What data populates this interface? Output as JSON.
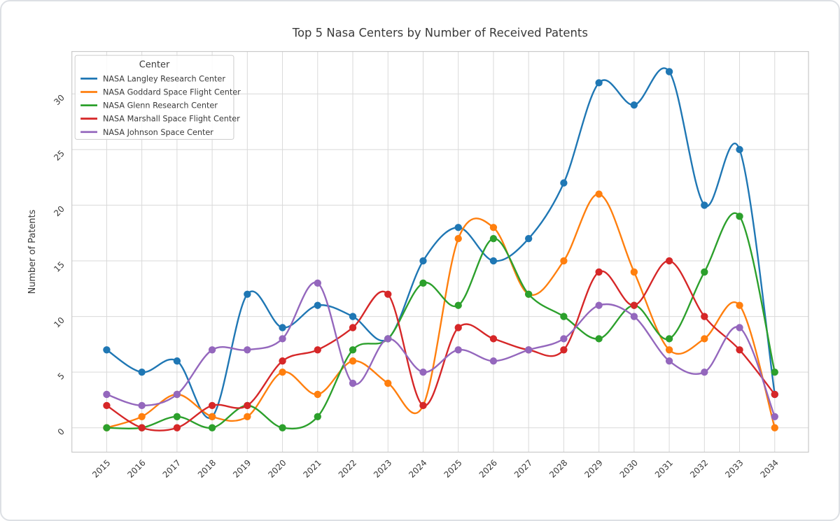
{
  "chart_data": {
    "type": "line",
    "title": "Top 5 Nasa Centers by Number of Received Patents",
    "xlabel": "",
    "ylabel": "Number of Patents",
    "legend_title": "Center",
    "legend_position": "upper left",
    "grid": true,
    "marker": "circle",
    "line_style": "smooth-spline",
    "categories": [
      "2015",
      "2016",
      "2017",
      "2018",
      "2019",
      "2020",
      "2021",
      "2022",
      "2023",
      "2024",
      "2025",
      "2026",
      "2027",
      "2028",
      "2029",
      "2030",
      "2031",
      "2032",
      "2033",
      "2034"
    ],
    "yticks": [
      0,
      5,
      10,
      15,
      20,
      25,
      30
    ],
    "ylim": [
      -2.3,
      33.8
    ],
    "grid_color": "#d9d9d9",
    "spine_color": "#c9c9c9",
    "text_color": "#3a3a3a",
    "series": [
      {
        "name": "NASA Langley Research Center",
        "color": "#1f77b4",
        "values": [
          7,
          5,
          6,
          1,
          12,
          9,
          11,
          10,
          8,
          15,
          18,
          15,
          17,
          22,
          31,
          29,
          32,
          20,
          25,
          3
        ]
      },
      {
        "name": "NASA Goddard Space Flight Center",
        "color": "#ff7f0e",
        "values": [
          0,
          1,
          3,
          1,
          1,
          5,
          3,
          6,
          4,
          2,
          17,
          18,
          12,
          15,
          21,
          14,
          7,
          8,
          11,
          0
        ]
      },
      {
        "name": "NASA Glenn Research Center",
        "color": "#2ca02c",
        "values": [
          0,
          0,
          1,
          0,
          2,
          0,
          1,
          7,
          8,
          13,
          11,
          17,
          12,
          10,
          8,
          11,
          8,
          14,
          19,
          5
        ]
      },
      {
        "name": "NASA Marshall Space Flight Center",
        "color": "#d62728",
        "values": [
          2,
          0,
          0,
          2,
          2,
          6,
          7,
          9,
          12,
          2,
          9,
          8,
          7,
          7,
          14,
          11,
          15,
          10,
          7,
          3
        ]
      },
      {
        "name": "NASA Johnson Space Center",
        "color": "#9467bd",
        "values": [
          3,
          2,
          3,
          7,
          7,
          8,
          13,
          4,
          8,
          5,
          7,
          6,
          7,
          8,
          11,
          10,
          6,
          5,
          9,
          1
        ]
      }
    ]
  }
}
